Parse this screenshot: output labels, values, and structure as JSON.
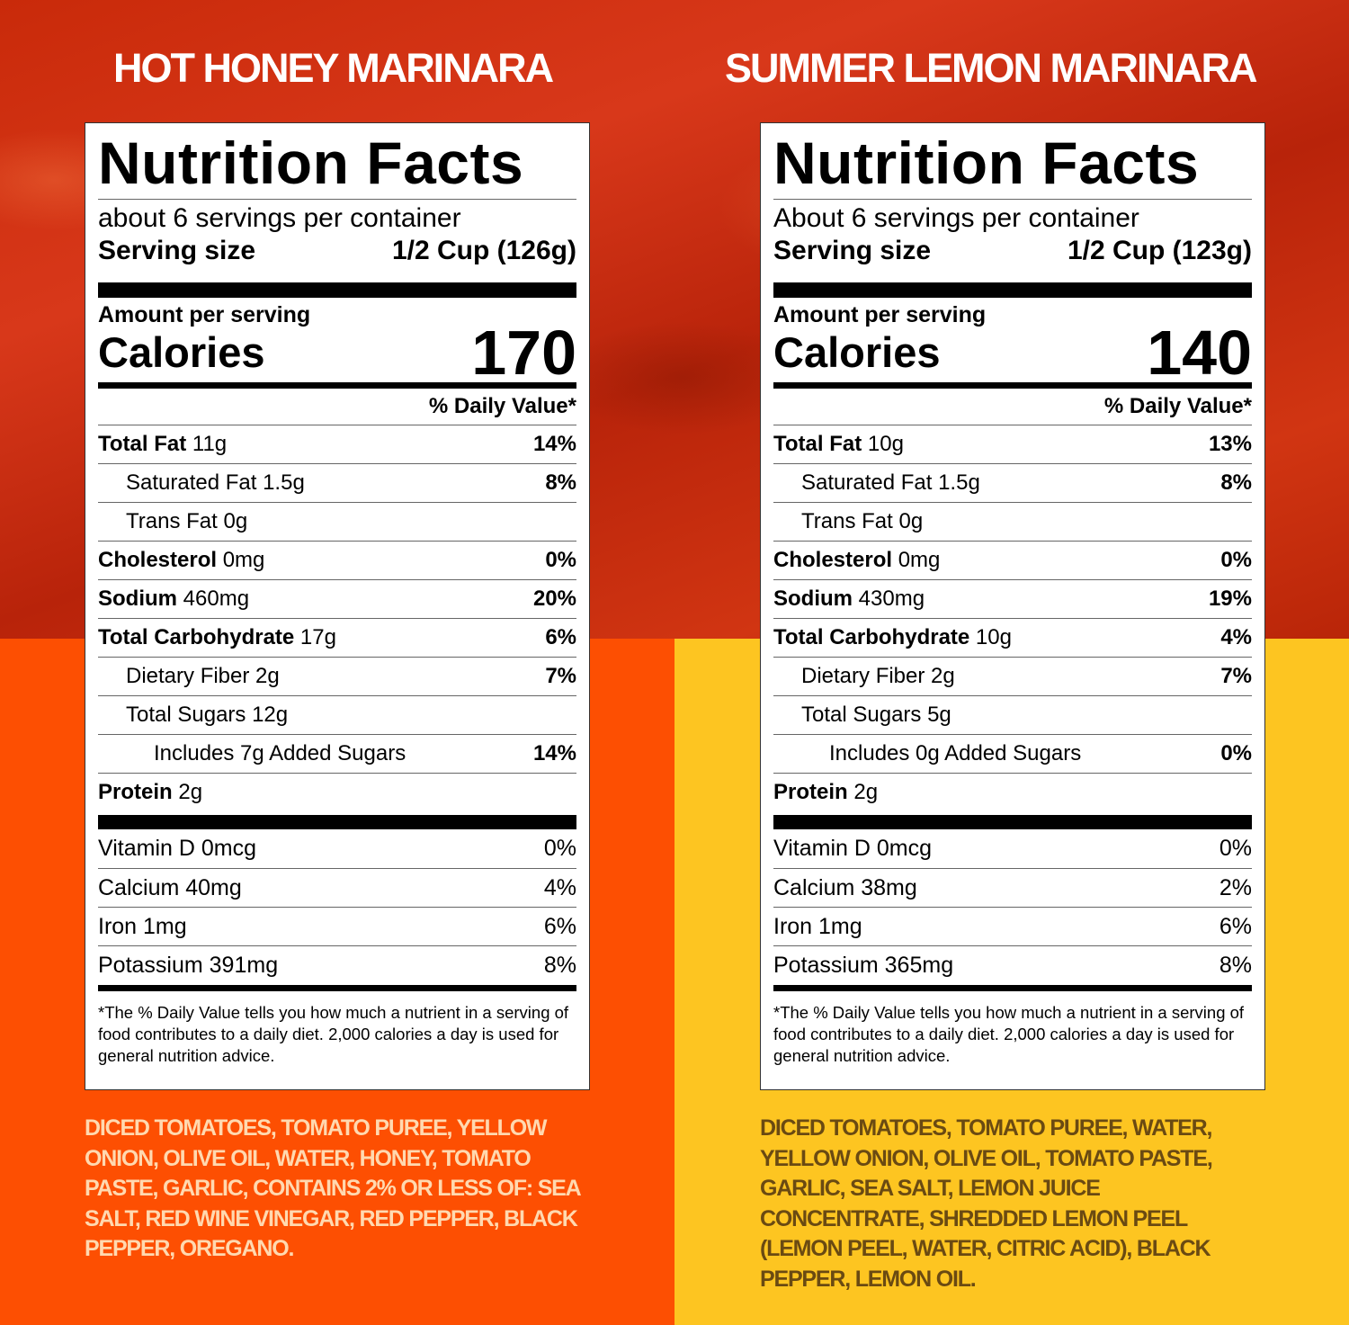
{
  "products": [
    {
      "title": "HOT HONEY MARINARA",
      "label": {
        "heading": "Nutrition Facts",
        "servings_per_container": "about 6 servings per container",
        "serving_size_label": "Serving size",
        "serving_size_value": "1/2 Cup (126g)",
        "amount_per_serving": "Amount per serving",
        "calories_label": "Calories",
        "calories_value": "170",
        "daily_value_heading": "% Daily Value*",
        "nutrients": [
          {
            "name": "Total Fat",
            "amount": " 11g",
            "dv": "14%"
          },
          {
            "name": "Saturated Fat 1.5g",
            "dv": "8%"
          },
          {
            "name": "Trans Fat 0g",
            "dv": ""
          },
          {
            "name": "Cholesterol",
            "amount": " 0mg",
            "dv": "0%"
          },
          {
            "name": "Sodium",
            "amount": " 460mg",
            "dv": "20%"
          },
          {
            "name": "Total Carbohydrate",
            "amount": " 17g",
            "dv": "6%"
          },
          {
            "name": "Dietary Fiber 2g",
            "dv": "7%"
          },
          {
            "name": "Total Sugars 12g",
            "dv": ""
          },
          {
            "name": "Includes 7g Added Sugars",
            "dv": "14%"
          },
          {
            "name": "Protein",
            "amount": " 2g",
            "dv": ""
          }
        ],
        "vitamins": [
          {
            "name": "Vitamin D 0mcg",
            "dv": "0%"
          },
          {
            "name": "Calcium 40mg",
            "dv": "4%"
          },
          {
            "name": "Iron 1mg",
            "dv": "6%"
          },
          {
            "name": "Potassium 391mg",
            "dv": "8%"
          }
        ],
        "footnote": "*The % Daily Value tells you how much a nutrient in a serving of food contributes to a daily diet. 2,000 calories a day is used for general nutrition advice."
      },
      "ingredients": "DICED TOMATOES, TOMATO PUREE, YELLOW ONION, OLIVE OIL, WATER, HONEY, TOMATO PASTE, GARLIC, CONTAINS 2% OR LESS OF: SEA SALT, RED WINE VINEGAR, RED PEPPER, BLACK PEPPER, OREGANO."
    },
    {
      "title": "SUMMER LEMON MARINARA",
      "label": {
        "heading": "Nutrition Facts",
        "servings_per_container": "About 6 servings per container",
        "serving_size_label": "Serving size",
        "serving_size_value": "1/2 Cup (123g)",
        "amount_per_serving": "Amount per serving",
        "calories_label": "Calories",
        "calories_value": "140",
        "daily_value_heading": "% Daily Value*",
        "nutrients": [
          {
            "name": "Total Fat",
            "amount": " 10g",
            "dv": "13%"
          },
          {
            "name": "Saturated Fat 1.5g",
            "dv": "8%"
          },
          {
            "name": "Trans Fat 0g",
            "dv": ""
          },
          {
            "name": "Cholesterol",
            "amount": " 0mg",
            "dv": "0%"
          },
          {
            "name": "Sodium",
            "amount": " 430mg",
            "dv": "19%"
          },
          {
            "name": "Total Carbohydrate",
            "amount": " 10g",
            "dv": "4%"
          },
          {
            "name": "Dietary Fiber 2g",
            "dv": "7%"
          },
          {
            "name": "Total Sugars 5g",
            "dv": ""
          },
          {
            "name": "Includes 0g Added Sugars",
            "dv": "0%"
          },
          {
            "name": "Protein",
            "amount": " 2g",
            "dv": ""
          }
        ],
        "vitamins": [
          {
            "name": "Vitamin D 0mcg",
            "dv": "0%"
          },
          {
            "name": "Calcium 38mg",
            "dv": "2%"
          },
          {
            "name": "Iron 1mg",
            "dv": "6%"
          },
          {
            "name": "Potassium 365mg",
            "dv": "8%"
          }
        ],
        "footnote": "*The % Daily Value tells you how much a nutrient in a serving of food contributes to a daily diet. 2,000 calories a day is used for general nutrition advice."
      },
      "ingredients": "DICED TOMATOES, TOMATO PUREE, WATER, YELLOW ONION, OLIVE OIL, TOMATO PASTE, GARLIC, SEA SALT, LEMON JUICE CONCENTRATE, SHREDDED LEMON PEEL (LEMON PEEL, WATER, CITRIC ACID), BLACK PEPPER, LEMON OIL."
    }
  ],
  "colors": {
    "sauce_background": "#c92a0a",
    "hot_honey_panel": "#fd4f02",
    "summer_lemon_panel": "#fdc521"
  }
}
